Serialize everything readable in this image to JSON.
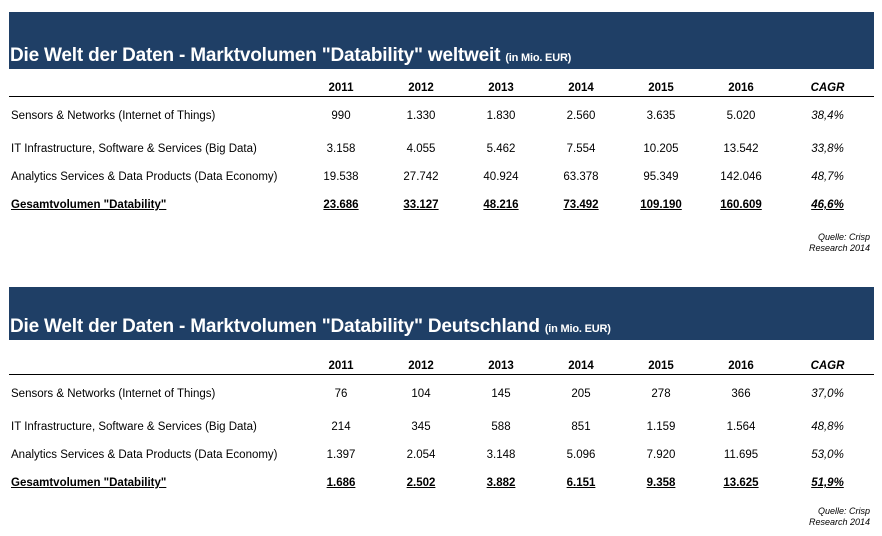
{
  "colors": {
    "header_bg": "#1f3f66",
    "header_text": "#ffffff"
  },
  "tables": [
    {
      "title": "Die Welt der Daten - Marktvolumen \"Datability\" weltweit",
      "unit": "(in Mio. EUR)",
      "columns": [
        "2011",
        "2012",
        "2013",
        "2014",
        "2015",
        "2016",
        "CAGR"
      ],
      "rows": [
        {
          "label": "Sensors & Networks (Internet of Things)",
          "values": [
            "990",
            "1.330",
            "1.830",
            "2.560",
            "3.635",
            "5.020",
            "38,4%"
          ]
        },
        {
          "label": "IT Infrastructure, Software & Services (Big Data)",
          "values": [
            "3.158",
            "4.055",
            "5.462",
            "7.554",
            "10.205",
            "13.542",
            "33,8%"
          ]
        },
        {
          "label": "Analytics Services & Data Products (Data Economy)",
          "values": [
            "19.538",
            "27.742",
            "40.924",
            "63.378",
            "95.349",
            "142.046",
            "48,7%"
          ]
        }
      ],
      "total": {
        "label": "Gesamtvolumen \"Datability\"",
        "values": [
          "23.686",
          "33.127",
          "48.216",
          "73.492",
          "109.190",
          "160.609",
          "46,6%"
        ]
      },
      "source_line1": "Quelle: Crisp",
      "source_line2": "Research 2014"
    },
    {
      "title": "Die Welt der Daten - Marktvolumen \"Datability\" Deutschland",
      "unit": "(in Mio. EUR)",
      "columns": [
        "2011",
        "2012",
        "2013",
        "2014",
        "2015",
        "2016",
        "CAGR"
      ],
      "rows": [
        {
          "label": "Sensors & Networks (Internet of Things)",
          "values": [
            "76",
            "104",
            "145",
            "205",
            "278",
            "366",
            "37,0%"
          ]
        },
        {
          "label": "IT Infrastructure, Software & Services (Big Data)",
          "values": [
            "214",
            "345",
            "588",
            "851",
            "1.159",
            "1.564",
            "48,8%"
          ]
        },
        {
          "label": "Analytics Services & Data Products (Data Economy)",
          "values": [
            "1.397",
            "2.054",
            "3.148",
            "5.096",
            "7.920",
            "11.695",
            "53,0%"
          ]
        }
      ],
      "total": {
        "label": "Gesamtvolumen \"Datability\"",
        "values": [
          "1.686",
          "2.502",
          "3.882",
          "6.151",
          "9.358",
          "13.625",
          "51,9%"
        ]
      },
      "source_line1": "Quelle: Crisp",
      "source_line2": "Research 2014"
    }
  ],
  "chart_data": [
    {
      "type": "table",
      "title": "Die Welt der Daten - Marktvolumen \"Datability\" weltweit",
      "unit": "in Mio. EUR",
      "columns": [
        "2011",
        "2012",
        "2013",
        "2014",
        "2015",
        "2016",
        "CAGR"
      ],
      "series": [
        {
          "name": "Sensors & Networks (Internet of Things)",
          "values": [
            990,
            1330,
            1830,
            2560,
            3635,
            5020
          ],
          "cagr": "38,4%"
        },
        {
          "name": "IT Infrastructure, Software & Services (Big Data)",
          "values": [
            3158,
            4055,
            5462,
            7554,
            10205,
            13542
          ],
          "cagr": "33,8%"
        },
        {
          "name": "Analytics Services & Data Products (Data Economy)",
          "values": [
            19538,
            27742,
            40924,
            63378,
            95349,
            142046
          ],
          "cagr": "48,7%"
        },
        {
          "name": "Gesamtvolumen \"Datability\"",
          "values": [
            23686,
            33127,
            48216,
            73492,
            109190,
            160609
          ],
          "cagr": "46,6%"
        }
      ]
    },
    {
      "type": "table",
      "title": "Die Welt der Daten - Marktvolumen \"Datability\" Deutschland",
      "unit": "in Mio. EUR",
      "columns": [
        "2011",
        "2012",
        "2013",
        "2014",
        "2015",
        "2016",
        "CAGR"
      ],
      "series": [
        {
          "name": "Sensors & Networks (Internet of Things)",
          "values": [
            76,
            104,
            145,
            205,
            278,
            366
          ],
          "cagr": "37,0%"
        },
        {
          "name": "IT Infrastructure, Software & Services (Big Data)",
          "values": [
            214,
            345,
            588,
            851,
            1159,
            1564
          ],
          "cagr": "48,8%"
        },
        {
          "name": "Analytics Services & Data Products (Data Economy)",
          "values": [
            1397,
            2054,
            3148,
            5096,
            7920,
            11695
          ],
          "cagr": "53,0%"
        },
        {
          "name": "Gesamtvolumen \"Datability\"",
          "values": [
            1686,
            2502,
            3882,
            6151,
            9358,
            13625
          ],
          "cagr": "51,9%"
        }
      ]
    }
  ]
}
